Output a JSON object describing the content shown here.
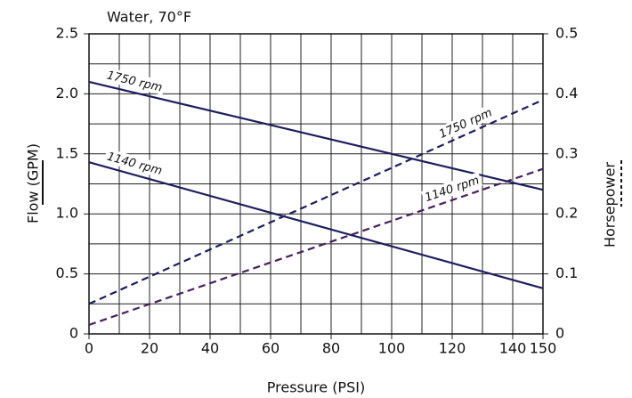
{
  "chart_data": {
    "type": "line",
    "title": "Water, 70°F",
    "x_label": "Pressure (PSI)",
    "y_label": "Flow (GPM)",
    "y2_label": "Horsepower",
    "x": [
      0,
      150
    ],
    "series": [
      {
        "name": "1750 rpm",
        "color": "#1c1f5e",
        "dash": false,
        "values": [
          2.1,
          1.2
        ]
      },
      {
        "name": "1140 rpm",
        "color": "#1c1f5e",
        "dash": false,
        "values": [
          1.43,
          0.38
        ]
      },
      {
        "name": "1750 rpm",
        "color": "#1c1f5e",
        "dash": true,
        "axis": "y2",
        "values": [
          0.05,
          0.39
        ]
      },
      {
        "name": "1140 rpm",
        "color": "#4a1d5e",
        "dash": true,
        "axis": "y2",
        "values": [
          0.015,
          0.275
        ]
      }
    ],
    "xlim": [
      0,
      150
    ],
    "xticks": [
      0,
      20,
      40,
      60,
      80,
      100,
      120,
      140,
      150
    ],
    "ylim": [
      0,
      2.5
    ],
    "yticks": [
      0,
      0.5,
      {
        "value": 1,
        "label": "1.0"
      },
      1.5,
      {
        "value": 2,
        "label": "2.0"
      },
      2.5
    ],
    "y2lim": [
      0,
      0.5
    ],
    "y2ticks": [
      0,
      0.1,
      0.2,
      0.3,
      0.4,
      0.5
    ],
    "grid": true
  }
}
